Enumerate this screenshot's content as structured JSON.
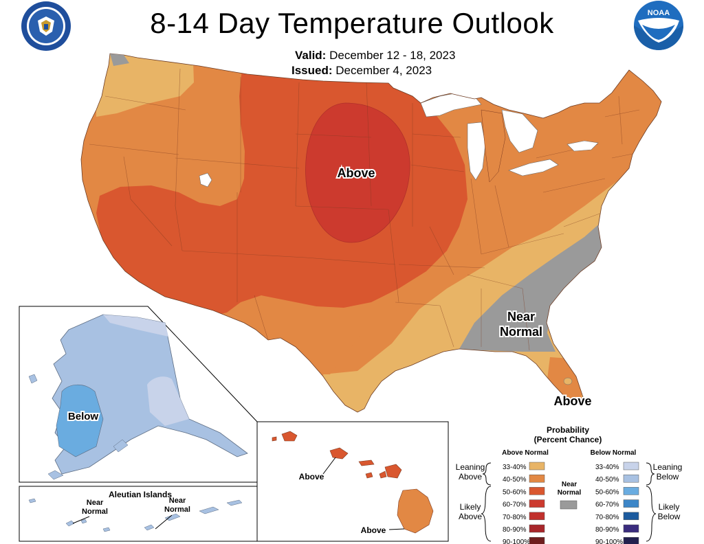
{
  "header": {
    "title": "8-14 Day Temperature Outlook",
    "valid_label": "Valid:",
    "valid_value": "December 12 - 18, 2023",
    "issued_label": "Issued:",
    "issued_value": "December 4, 2023"
  },
  "map_labels": {
    "above_central": "Above",
    "near_normal_line1": "Near",
    "near_normal_line2": "Normal",
    "above_florida": "Above",
    "alaska_below": "Below",
    "aleutian_title": "Aleutian Islands",
    "aleutian_near1_line1": "Near",
    "aleutian_near1_line2": "Normal",
    "aleutian_near2_line1": "Near",
    "aleutian_near2_line2": "Normal",
    "hawaii_above1": "Above",
    "hawaii_above2": "Above"
  },
  "legend": {
    "title_line1": "Probability",
    "title_line2": "(Percent Chance)",
    "above_header": "Above Normal",
    "below_header": "Below Normal",
    "near_line1": "Near",
    "near_line2": "Normal",
    "leaning_above_1": "Leaning",
    "leaning_above_2": "Above",
    "likely_above_1": "Likely",
    "likely_above_2": "Above",
    "leaning_below_1": "Leaning",
    "leaning_below_2": "Below",
    "likely_below_1": "Likely",
    "likely_below_2": "Below",
    "ranges": [
      "33-40%",
      "40-50%",
      "50-60%",
      "60-70%",
      "70-80%",
      "80-90%",
      "90-100%"
    ],
    "above_colors": [
      "#e8b466",
      "#e28844",
      "#d9572f",
      "#cc3a2e",
      "#c0302c",
      "#a8262a",
      "#6e1e1e"
    ],
    "below_colors": [
      "#c8d3ea",
      "#a8c1e2",
      "#6aace0",
      "#3c86c8",
      "#1c5b9e",
      "#3a2c7e",
      "#22204e"
    ],
    "near_color": "#9a9a9a"
  },
  "colors": {
    "above_33_40": "#e8b466",
    "above_40_50": "#e28844",
    "above_50_60": "#d9572f",
    "above_60_70": "#cc3a2e",
    "near_normal": "#9a9a9a",
    "below_33_40": "#c8d3ea",
    "below_40_50": "#a8c1e2",
    "below_50_60": "#6aace0",
    "noaa_blue": "#1f6dbf",
    "doc_blue": "#1f4e9c"
  },
  "logos": {
    "doc_seal": "department-of-commerce-seal-icon",
    "noaa_logo": "noaa-logo-icon",
    "noaa_text": "NOAA",
    "doc_text": "DEPARTMENT OF COMMERCE"
  }
}
